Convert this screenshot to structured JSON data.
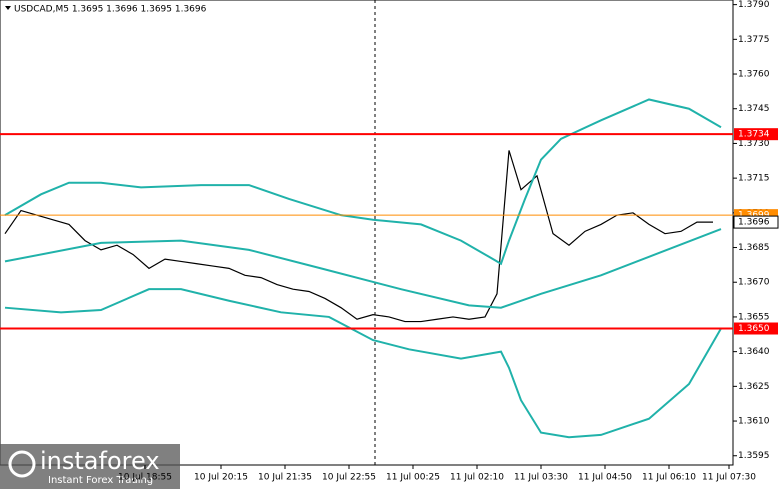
{
  "chart_data": {
    "type": "line",
    "title": "USDCAD,M5  1.3695 1.3696 1.3695 1.3696",
    "xlim": [
      -1.25,
      182
    ],
    "ylim": [
      1.3591,
      1.3792
    ],
    "yticks": [
      {
        "value": 1.3595,
        "label": "1.3595"
      },
      {
        "value": 1.361,
        "label": "1.3610"
      },
      {
        "value": 1.3625,
        "label": "1.3625"
      },
      {
        "value": 1.364,
        "label": "1.3640"
      },
      {
        "value": 1.3655,
        "label": "1.3655"
      },
      {
        "value": 1.367,
        "label": "1.3670"
      },
      {
        "value": 1.3685,
        "label": "1.3685"
      },
      {
        "value": 1.37,
        "label": "1.3700"
      },
      {
        "value": 1.3715,
        "label": "1.3715"
      },
      {
        "value": 1.373,
        "label": "1.3730"
      },
      {
        "value": 1.3745,
        "label": "1.3745"
      },
      {
        "value": 1.376,
        "label": "1.3760"
      },
      {
        "value": 1.3775,
        "label": "1.3775"
      },
      {
        "value": 1.379,
        "label": "1.3790"
      }
    ],
    "xticks": [
      {
        "value": 35,
        "label": "10 Jul 18:55"
      },
      {
        "value": 54,
        "label": "10 Jul 20:15"
      },
      {
        "value": 70,
        "label": "10 Jul 21:35"
      },
      {
        "value": 86,
        "label": "10 Jul 22:55"
      },
      {
        "value": 102,
        "label": "11 Jul 00:25"
      },
      {
        "value": 118,
        "label": "11 Jul 02:10"
      },
      {
        "value": 134,
        "label": "11 Jul 03:30"
      },
      {
        "value": 150,
        "label": "11 Jul 04:50"
      },
      {
        "value": 166,
        "label": "11 Jul 06:10"
      },
      {
        "value": 181,
        "label": "11 Jul 07:30"
      }
    ],
    "series": [
      {
        "color": "#000000",
        "x": [
          0,
          4,
          8,
          12,
          16,
          20,
          24,
          28,
          32,
          36,
          40,
          44,
          48,
          52,
          56,
          60,
          64,
          68,
          72,
          76,
          80,
          84,
          88,
          92,
          96,
          100,
          104,
          108,
          112,
          116,
          120,
          123,
          126,
          129,
          133,
          137,
          141,
          145,
          149,
          153,
          157,
          161,
          165,
          169,
          173,
          177
        ],
        "values": [
          1.3691,
          1.3701,
          1.3699,
          1.3697,
          1.3695,
          1.3688,
          1.3684,
          1.3686,
          1.3682,
          1.3676,
          1.368,
          1.3679,
          1.3678,
          1.3677,
          1.3676,
          1.3673,
          1.3672,
          1.3669,
          1.3667,
          1.3666,
          1.3663,
          1.3659,
          1.3654,
          1.3656,
          1.3655,
          1.3653,
          1.3653,
          1.3654,
          1.3655,
          1.3654,
          1.3655,
          1.3665,
          1.3727,
          1.371,
          1.3716,
          1.3691,
          1.3686,
          1.3692,
          1.3695,
          1.3699,
          1.37,
          1.3695,
          1.3691,
          1.3692,
          1.3696,
          1.3696
        ]
      },
      {
        "color": "#20b2aa",
        "x": [
          0,
          9,
          16,
          24,
          34,
          49,
          61,
          71,
          84,
          92,
          104,
          114,
          121,
          124,
          126,
          130,
          134,
          139,
          149,
          161,
          171,
          179
        ],
        "values": [
          1.3699,
          1.3708,
          1.3713,
          1.3713,
          1.3711,
          1.3712,
          1.3712,
          1.3706,
          1.3699,
          1.3697,
          1.3695,
          1.3688,
          1.3681,
          1.3678,
          1.3688,
          1.3706,
          1.3723,
          1.3732,
          1.374,
          1.3749,
          1.3745,
          1.3737
        ]
      },
      {
        "color": "#20b2aa",
        "x": [
          0,
          24,
          44,
          61,
          79,
          99,
          116,
          124,
          134,
          149,
          161,
          179
        ],
        "values": [
          1.3679,
          1.3687,
          1.3688,
          1.3684,
          1.3676,
          1.3667,
          1.366,
          1.3659,
          1.3665,
          1.3673,
          1.3681,
          1.3693
        ]
      },
      {
        "color": "#20b2aa",
        "x": [
          0,
          14,
          24,
          36,
          44,
          56,
          69,
          81,
          92,
          101,
          114,
          124,
          126,
          129,
          134,
          141,
          149,
          161,
          171,
          179
        ],
        "values": [
          1.3659,
          1.3657,
          1.3658,
          1.3667,
          1.3667,
          1.3662,
          1.3657,
          1.3655,
          1.3645,
          1.3641,
          1.3637,
          1.364,
          1.3633,
          1.3619,
          1.3605,
          1.3603,
          1.3604,
          1.3611,
          1.3626,
          1.365
        ]
      }
    ],
    "levels": [
      {
        "value": 1.3734,
        "label": "1.3734",
        "color": "#ff0000"
      },
      {
        "value": 1.365,
        "label": "1.3650",
        "color": "#ff0000"
      },
      {
        "value": 1.3699,
        "label": "1.3699",
        "color": "#ff8c00"
      },
      {
        "value": 1.3696,
        "label": "1.3696",
        "color": "#000000"
      }
    ]
  },
  "watermark": {
    "brand": "instaforex",
    "slogan": "Instant Forex Trading"
  }
}
